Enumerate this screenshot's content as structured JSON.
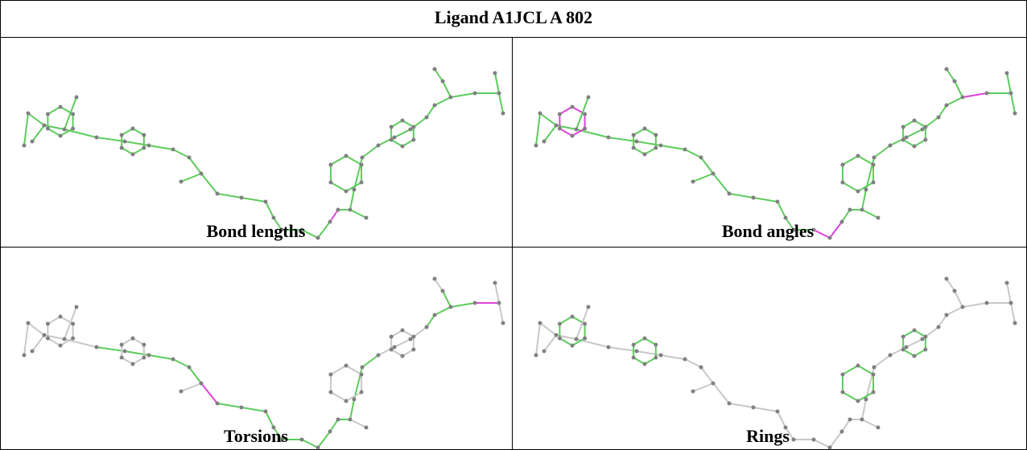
{
  "title": "Ligand A1JCL A 802",
  "panels": [
    {
      "caption": "Bond lengths"
    },
    {
      "caption": "Bond angles"
    },
    {
      "caption": "Torsions"
    },
    {
      "caption": "Rings"
    }
  ]
}
